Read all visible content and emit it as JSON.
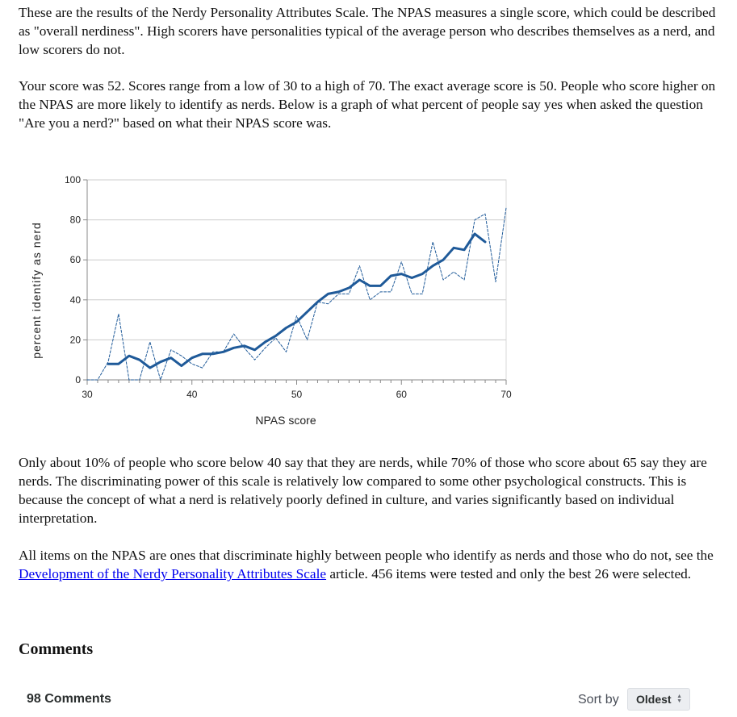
{
  "intro": "These are the results of the Nerdy Personality Attributes Scale. The NPAS measures a single score, which could be described as \"overall nerdiness\". High scorers have personalities typical of the average person who describes themselves as a nerd, and low scorers do not.",
  "score_paragraph": "Your score was 52. Scores range from a low of 30 to a high of 70. The exact average score is 50. People who score higher on the NPAS are more likely to identify as nerds. Below is a graph of what percent of people say yes when asked the question \"Are you a nerd?\" based on what their NPAS score was.",
  "interpretation": "Only about 10% of people who score below 40 say that they are nerds, while 70% of those who score about 65 say they are nerds. The discriminating power of this scale is relatively low compared to some other psychological constructs. This is because the concept of what a nerd is relatively poorly defined in culture, and varies significantly based on individual interpretation.",
  "items_paragraph": {
    "before_link": "All items on the NPAS are ones that discriminate highly between people who identify as nerds and those who do not, see the ",
    "link_text": "Development of the Nerdy Personality Attributes Scale",
    "after_link": " article. 456 items were tested and only the best 26 were selected."
  },
  "comments": {
    "heading": "Comments",
    "count_label": "98 Comments",
    "sort_label": "Sort by",
    "sort_value": "Oldest",
    "sort_icon": "sort-updown-icon"
  },
  "chart_data": {
    "type": "line",
    "title": "",
    "xlabel": "NPAS score",
    "ylabel": "percent identify as nerd",
    "xlim": [
      30,
      70
    ],
    "ylim": [
      0,
      100
    ],
    "x_ticks": [
      30,
      40,
      50,
      60,
      70
    ],
    "y_ticks": [
      0,
      20,
      40,
      60,
      80,
      100
    ],
    "grid": true,
    "colors": {
      "line": "#1f5a99",
      "grid": "#cccccc",
      "axis": "#888888"
    },
    "series": [
      {
        "style": "dashed",
        "x": [
          30,
          31,
          32,
          33,
          34,
          35,
          36,
          37,
          38,
          39,
          40,
          41,
          42,
          43,
          44,
          45,
          46,
          47,
          48,
          49,
          50,
          51,
          52,
          53,
          54,
          55,
          56,
          57,
          58,
          59,
          60,
          61,
          62,
          63,
          64,
          65,
          66,
          67,
          68,
          69,
          70
        ],
        "y": [
          0,
          0,
          9,
          33,
          0,
          0,
          19,
          0,
          15,
          12,
          8,
          6,
          14,
          14,
          23,
          16,
          10,
          16,
          21,
          14,
          32,
          20,
          39,
          38,
          43,
          43,
          57,
          40,
          44,
          44,
          59,
          43,
          43,
          69,
          50,
          54,
          50,
          80,
          83,
          49,
          86
        ]
      },
      {
        "style": "solid",
        "x": [
          32,
          33,
          34,
          35,
          36,
          37,
          38,
          39,
          40,
          41,
          42,
          43,
          44,
          45,
          46,
          47,
          48,
          49,
          50,
          51,
          52,
          53,
          54,
          55,
          56,
          57,
          58,
          59,
          60,
          61,
          62,
          63,
          64,
          65,
          66,
          67,
          68
        ],
        "y": [
          8,
          8,
          12,
          10,
          6,
          9,
          11,
          7,
          11,
          13,
          13,
          14,
          16,
          17,
          15,
          19,
          22,
          26,
          29,
          34,
          39,
          43,
          44,
          46,
          50,
          47,
          47,
          52,
          53,
          51,
          53,
          57,
          60,
          66,
          65,
          73,
          69
        ]
      }
    ]
  }
}
